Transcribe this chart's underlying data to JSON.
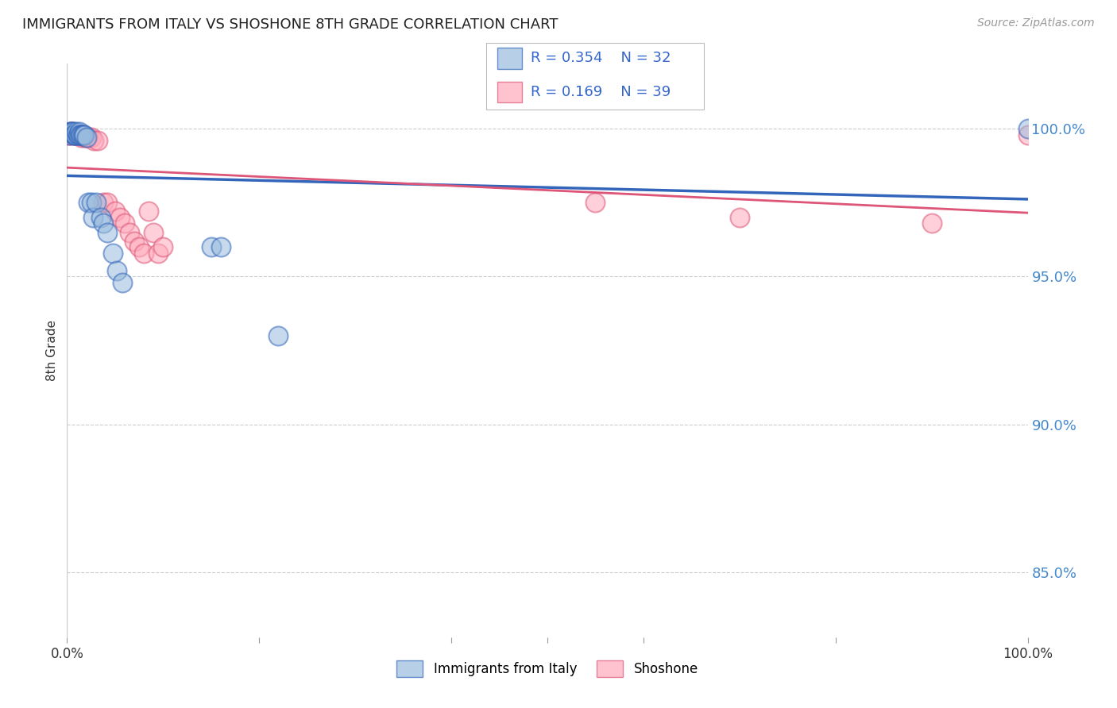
{
  "title": "IMMIGRANTS FROM ITALY VS SHOSHONE 8TH GRADE CORRELATION CHART",
  "source": "Source: ZipAtlas.com",
  "ylabel": "8th Grade",
  "ytick_labels": [
    "85.0%",
    "90.0%",
    "95.0%",
    "100.0%"
  ],
  "ytick_values": [
    0.85,
    0.9,
    0.95,
    1.0
  ],
  "xlim": [
    0.0,
    1.0
  ],
  "ylim": [
    0.828,
    1.022
  ],
  "legend_label1": "Immigrants from Italy",
  "legend_label2": "Shoshone",
  "r1": 0.354,
  "n1": 32,
  "r2": 0.169,
  "n2": 39,
  "color_blue": "#99BBDD",
  "color_pink": "#FFAABB",
  "line_color_blue": "#3366BB",
  "line_color_pink": "#DD5577",
  "italy_x": [
    0.002,
    0.003,
    0.004,
    0.005,
    0.006,
    0.007,
    0.008,
    0.009,
    0.01,
    0.011,
    0.012,
    0.013,
    0.014,
    0.015,
    0.016,
    0.017,
    0.018,
    0.02,
    0.022,
    0.025,
    0.027,
    0.03,
    0.035,
    0.038,
    0.042,
    0.048,
    0.052,
    0.058,
    0.15,
    0.16,
    0.22,
    1.0
  ],
  "italy_y": [
    0.998,
    0.999,
    0.999,
    0.999,
    0.999,
    0.998,
    0.998,
    0.998,
    0.999,
    0.998,
    0.998,
    0.999,
    0.998,
    0.998,
    0.998,
    0.998,
    0.998,
    0.997,
    0.975,
    0.975,
    0.97,
    0.975,
    0.97,
    0.968,
    0.965,
    0.958,
    0.952,
    0.948,
    0.96,
    0.96,
    0.93,
    1.0
  ],
  "shoshone_x": [
    0.002,
    0.003,
    0.004,
    0.005,
    0.006,
    0.007,
    0.008,
    0.009,
    0.01,
    0.011,
    0.012,
    0.013,
    0.014,
    0.015,
    0.016,
    0.017,
    0.018,
    0.02,
    0.022,
    0.025,
    0.028,
    0.032,
    0.038,
    0.042,
    0.05,
    0.055,
    0.06,
    0.065,
    0.07,
    0.075,
    0.08,
    0.085,
    0.09,
    0.095,
    0.1,
    0.55,
    0.7,
    0.9,
    1.0
  ],
  "shoshone_y": [
    0.998,
    0.998,
    0.999,
    0.999,
    0.998,
    0.999,
    0.998,
    0.998,
    0.998,
    0.998,
    0.998,
    0.998,
    0.998,
    0.997,
    0.998,
    0.998,
    0.997,
    0.997,
    0.997,
    0.997,
    0.996,
    0.996,
    0.975,
    0.975,
    0.972,
    0.97,
    0.968,
    0.965,
    0.962,
    0.96,
    0.958,
    0.972,
    0.965,
    0.958,
    0.96,
    0.975,
    0.97,
    0.968,
    0.998
  ]
}
